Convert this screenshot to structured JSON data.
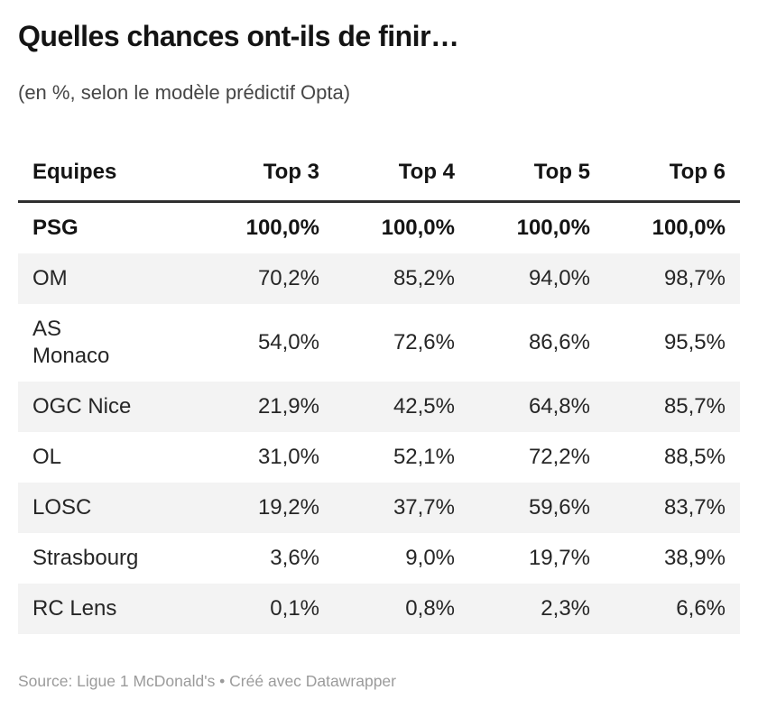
{
  "header": {
    "title": "Quelles chances ont-ils de finir…",
    "subtitle": "(en %, selon le modèle prédictif Opta)"
  },
  "table": {
    "columns": [
      "Equipes",
      "Top 3",
      "Top 4",
      "Top 5",
      "Top 6"
    ],
    "rows": [
      {
        "team": "PSG",
        "team_display": "PSG",
        "values": [
          "100,0%",
          "100,0%",
          "100,0%",
          "100,0%"
        ],
        "bold": true,
        "shaded": false
      },
      {
        "team": "OM",
        "team_display": "OM",
        "values": [
          "70,2%",
          "85,2%",
          "94,0%",
          "98,7%"
        ],
        "bold": false,
        "shaded": true
      },
      {
        "team": "AS Monaco",
        "team_display": "AS\nMonaco",
        "values": [
          "54,0%",
          "72,6%",
          "86,6%",
          "95,5%"
        ],
        "bold": false,
        "shaded": false
      },
      {
        "team": "OGC Nice",
        "team_display": "OGC Nice",
        "values": [
          "21,9%",
          "42,5%",
          "64,8%",
          "85,7%"
        ],
        "bold": false,
        "shaded": true
      },
      {
        "team": "OL",
        "team_display": "OL",
        "values": [
          "31,0%",
          "52,1%",
          "72,2%",
          "88,5%"
        ],
        "bold": false,
        "shaded": false
      },
      {
        "team": "LOSC",
        "team_display": "LOSC",
        "values": [
          "19,2%",
          "37,7%",
          "59,6%",
          "83,7%"
        ],
        "bold": false,
        "shaded": true
      },
      {
        "team": "Strasbourg",
        "team_display": "Strasbourg",
        "values": [
          "3,6%",
          "9,0%",
          "19,7%",
          "38,9%"
        ],
        "bold": false,
        "shaded": false
      },
      {
        "team": "RC Lens",
        "team_display": "RC Lens",
        "values": [
          "0,1%",
          "0,8%",
          "2,3%",
          "6,6%"
        ],
        "bold": false,
        "shaded": true
      }
    ]
  },
  "footer": {
    "source_text": "Source: Ligue 1 McDonald's • Créé avec Datawrapper"
  },
  "colors": {
    "title_text": "#141414",
    "subtitle_text": "#464646",
    "body_text": "#262626",
    "row_shade": "#f3f3f3",
    "header_border": "#2f2f2f",
    "footer_text": "#9b9b9b",
    "background": "#ffffff"
  },
  "chart_data": {
    "type": "table",
    "title": "Quelles chances ont-ils de finir…",
    "subtitle": "(en %, selon le modèle prédictif Opta)",
    "unit": "percent",
    "columns": [
      "Equipes",
      "Top 3",
      "Top 4",
      "Top 5",
      "Top 6"
    ],
    "rows": [
      {
        "team": "PSG",
        "top3": 100.0,
        "top4": 100.0,
        "top5": 100.0,
        "top6": 100.0
      },
      {
        "team": "OM",
        "top3": 70.2,
        "top4": 85.2,
        "top5": 94.0,
        "top6": 98.7
      },
      {
        "team": "AS Monaco",
        "top3": 54.0,
        "top4": 72.6,
        "top5": 86.6,
        "top6": 95.5
      },
      {
        "team": "OGC Nice",
        "top3": 21.9,
        "top4": 42.5,
        "top5": 64.8,
        "top6": 85.7
      },
      {
        "team": "OL",
        "top3": 31.0,
        "top4": 52.1,
        "top5": 72.2,
        "top6": 88.5
      },
      {
        "team": "LOSC",
        "top3": 19.2,
        "top4": 37.7,
        "top5": 59.6,
        "top6": 83.7
      },
      {
        "team": "Strasbourg",
        "top3": 3.6,
        "top4": 9.0,
        "top5": 19.7,
        "top6": 38.9
      },
      {
        "team": "RC Lens",
        "top3": 0.1,
        "top4": 0.8,
        "top5": 2.3,
        "top6": 6.6
      }
    ],
    "source": "Source: Ligue 1 McDonald's • Créé avec Datawrapper",
    "layout_hints": {
      "highlight_row": "PSG",
      "alternating_row_shading": true,
      "value_alignment": "right"
    }
  }
}
